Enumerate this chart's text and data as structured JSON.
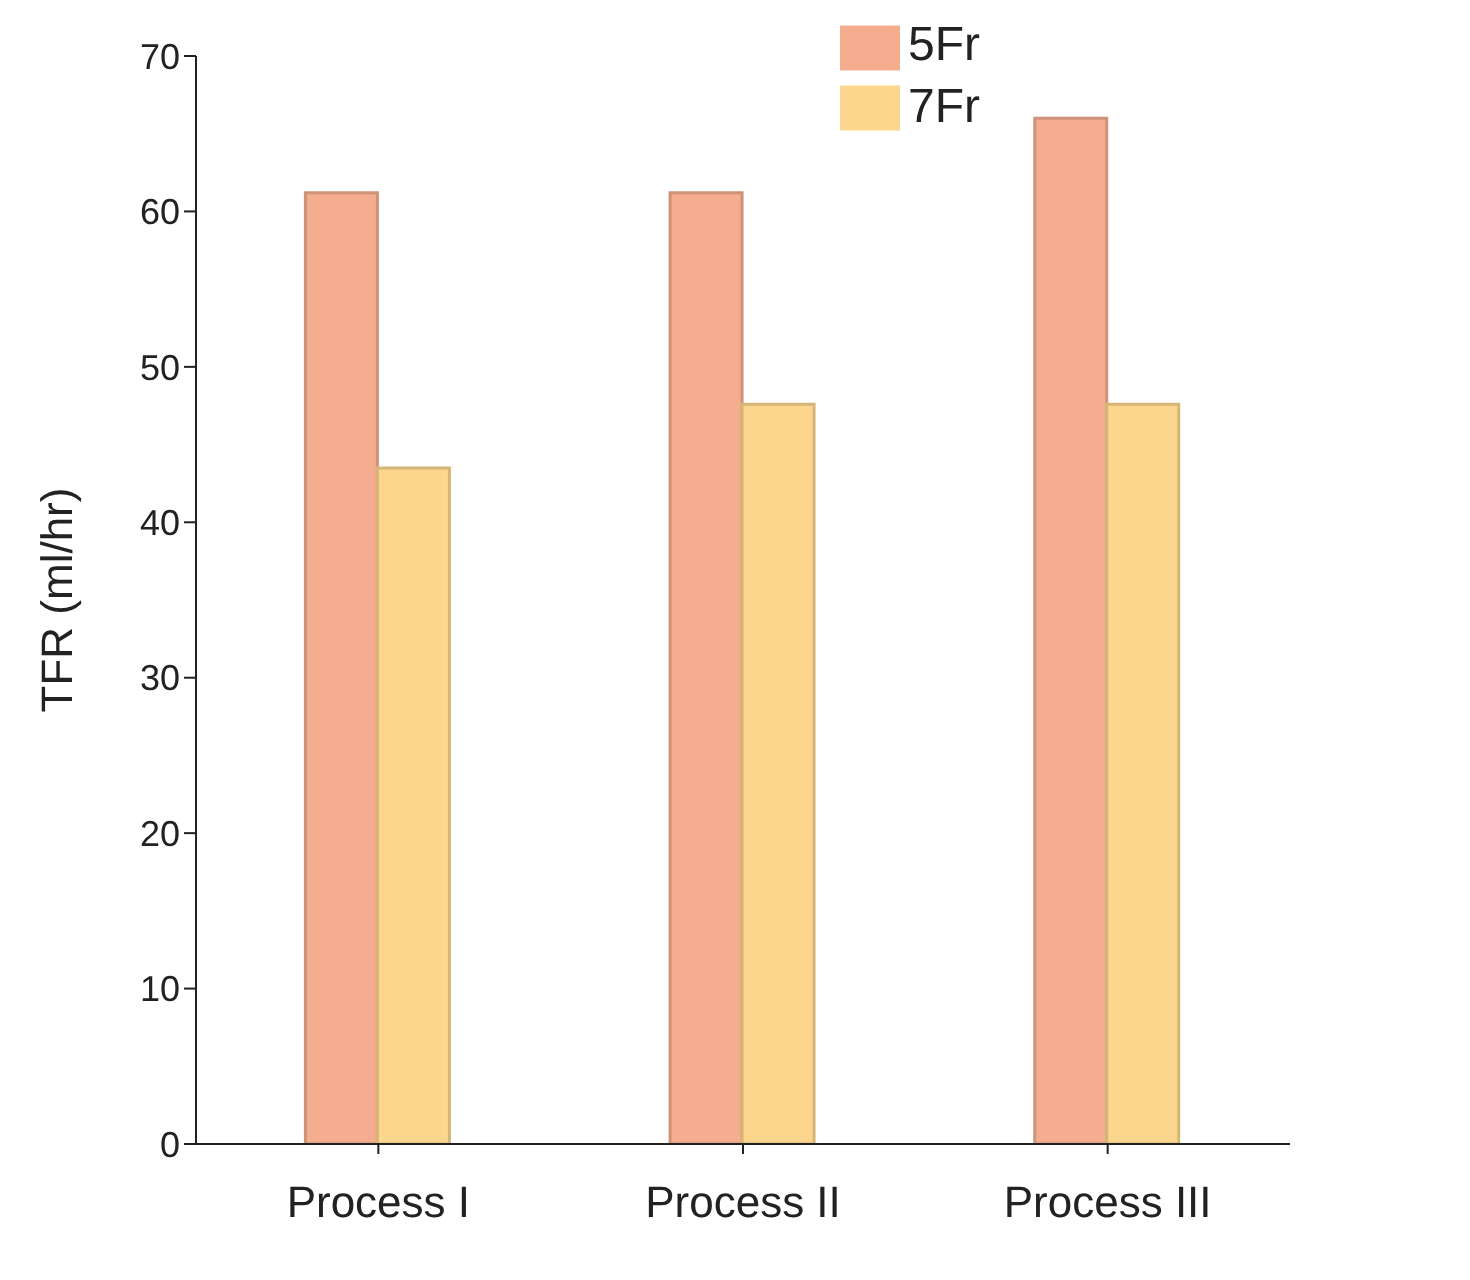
{
  "chart_data": {
    "type": "bar",
    "ylabel": "TFR (ml/hr)",
    "categories": [
      "Process I",
      "Process II",
      "Process III"
    ],
    "series": [
      {
        "name": "5Fr",
        "color": "#f4ad8e",
        "values": [
          61.2,
          61.2,
          66.0
        ]
      },
      {
        "name": "7Fr",
        "color": "#fcd68c",
        "values": [
          43.5,
          47.6,
          47.6
        ]
      }
    ],
    "ylim": [
      0,
      70
    ],
    "yticks": [
      0,
      10,
      20,
      30,
      40,
      50,
      60,
      70
    ],
    "grid": false,
    "legend": "top right"
  }
}
